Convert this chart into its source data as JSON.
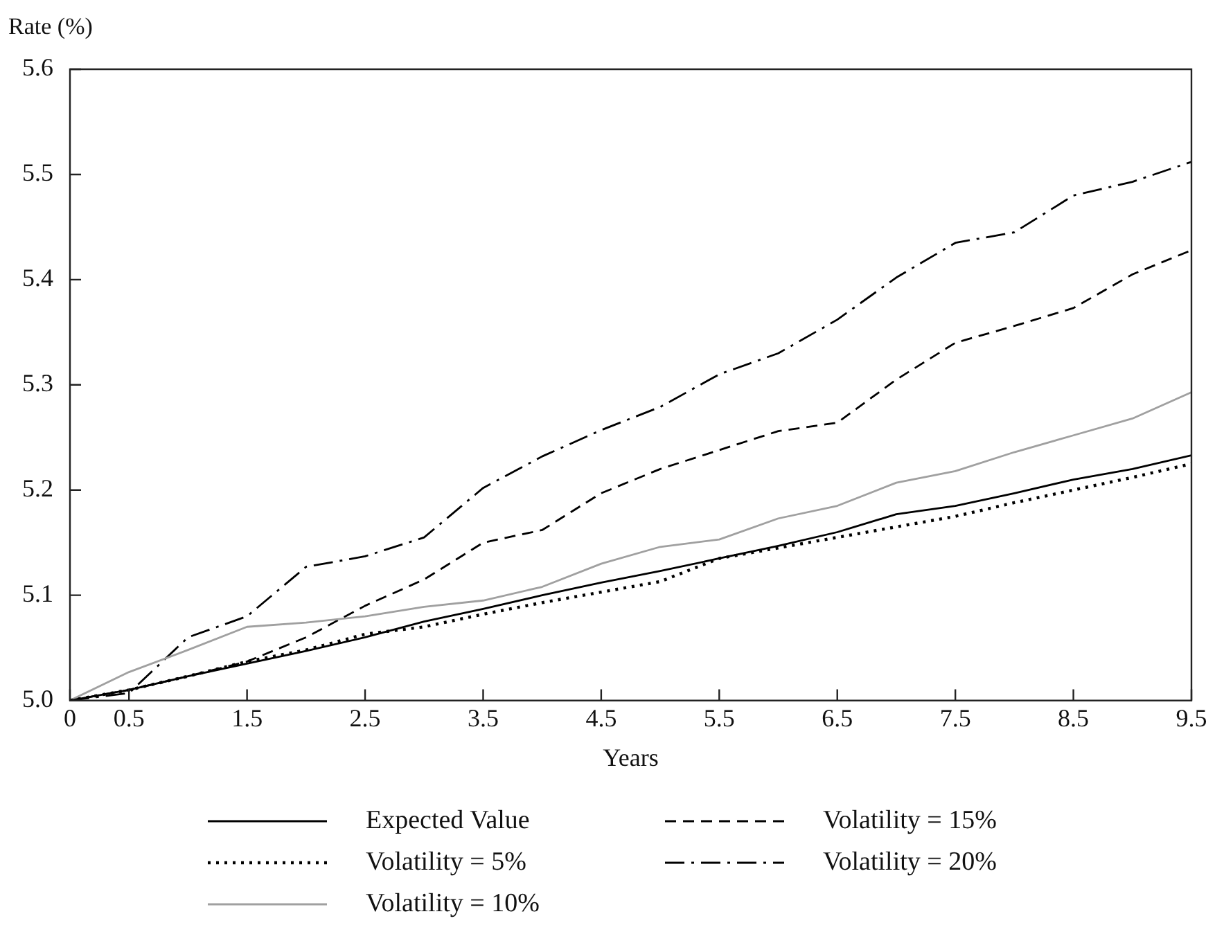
{
  "chart_data": {
    "type": "line",
    "ylabel": "Rate (%)",
    "xlabel": "Years",
    "x": [
      0,
      0.5,
      1,
      1.5,
      2,
      2.5,
      3,
      3.5,
      4,
      4.5,
      5,
      5.5,
      6,
      6.5,
      7,
      7.5,
      8,
      8.5,
      9,
      9.5
    ],
    "xlim": [
      0,
      9.5
    ],
    "xticks": [
      0,
      0.5,
      1.5,
      2.5,
      3.5,
      4.5,
      5.5,
      6.5,
      7.5,
      8.5,
      9.5
    ],
    "ylim": [
      5.0,
      5.6
    ],
    "yticks": [
      {
        "value": 5.0,
        "label": "5.0"
      },
      5.1,
      5.2,
      5.3,
      5.4,
      5.5,
      5.6
    ],
    "grid": false,
    "legend": "bottom",
    "marker": "none",
    "series": [
      {
        "name": "Expected Value",
        "color": "#000000",
        "line_style": "solid",
        "values": [
          5.0,
          5.01,
          5.023,
          5.035,
          5.047,
          5.06,
          5.075,
          5.087,
          5.1,
          5.112,
          5.123,
          5.135,
          5.147,
          5.16,
          5.177,
          5.185,
          5.197,
          5.21,
          5.22,
          5.233
        ]
      },
      {
        "name": "Volatility = 5%",
        "color": "#000000",
        "line_style": "dotted",
        "values": [
          5.0,
          5.01,
          5.023,
          5.037,
          5.048,
          5.063,
          5.07,
          5.082,
          5.093,
          5.103,
          5.113,
          5.135,
          5.145,
          5.155,
          5.165,
          5.175,
          5.188,
          5.2,
          5.212,
          5.225
        ]
      },
      {
        "name": "Volatility = 10%",
        "color": "#a0a0a0",
        "line_style": "solid",
        "values": [
          5.0,
          5.027,
          5.048,
          5.07,
          5.074,
          5.08,
          5.089,
          5.095,
          5.108,
          5.13,
          5.146,
          5.153,
          5.173,
          5.185,
          5.207,
          5.218,
          5.236,
          5.252,
          5.268,
          5.293
        ]
      },
      {
        "name": "Volatility = 15%",
        "color": "#000000",
        "line_style": "dashed",
        "values": [
          5.0,
          5.01,
          5.023,
          5.037,
          5.06,
          5.09,
          5.115,
          5.15,
          5.162,
          5.197,
          5.22,
          5.238,
          5.256,
          5.264,
          5.305,
          5.34,
          5.356,
          5.373,
          5.405,
          5.428
        ]
      },
      {
        "name": "Volatility = 20%",
        "color": "#000000",
        "line_style": "dashdot",
        "values": [
          5.0,
          5.007,
          5.06,
          5.08,
          5.127,
          5.137,
          5.155,
          5.202,
          5.232,
          5.257,
          5.279,
          5.31,
          5.33,
          5.362,
          5.402,
          5.435,
          5.445,
          5.48,
          5.493,
          5.512
        ]
      }
    ]
  }
}
